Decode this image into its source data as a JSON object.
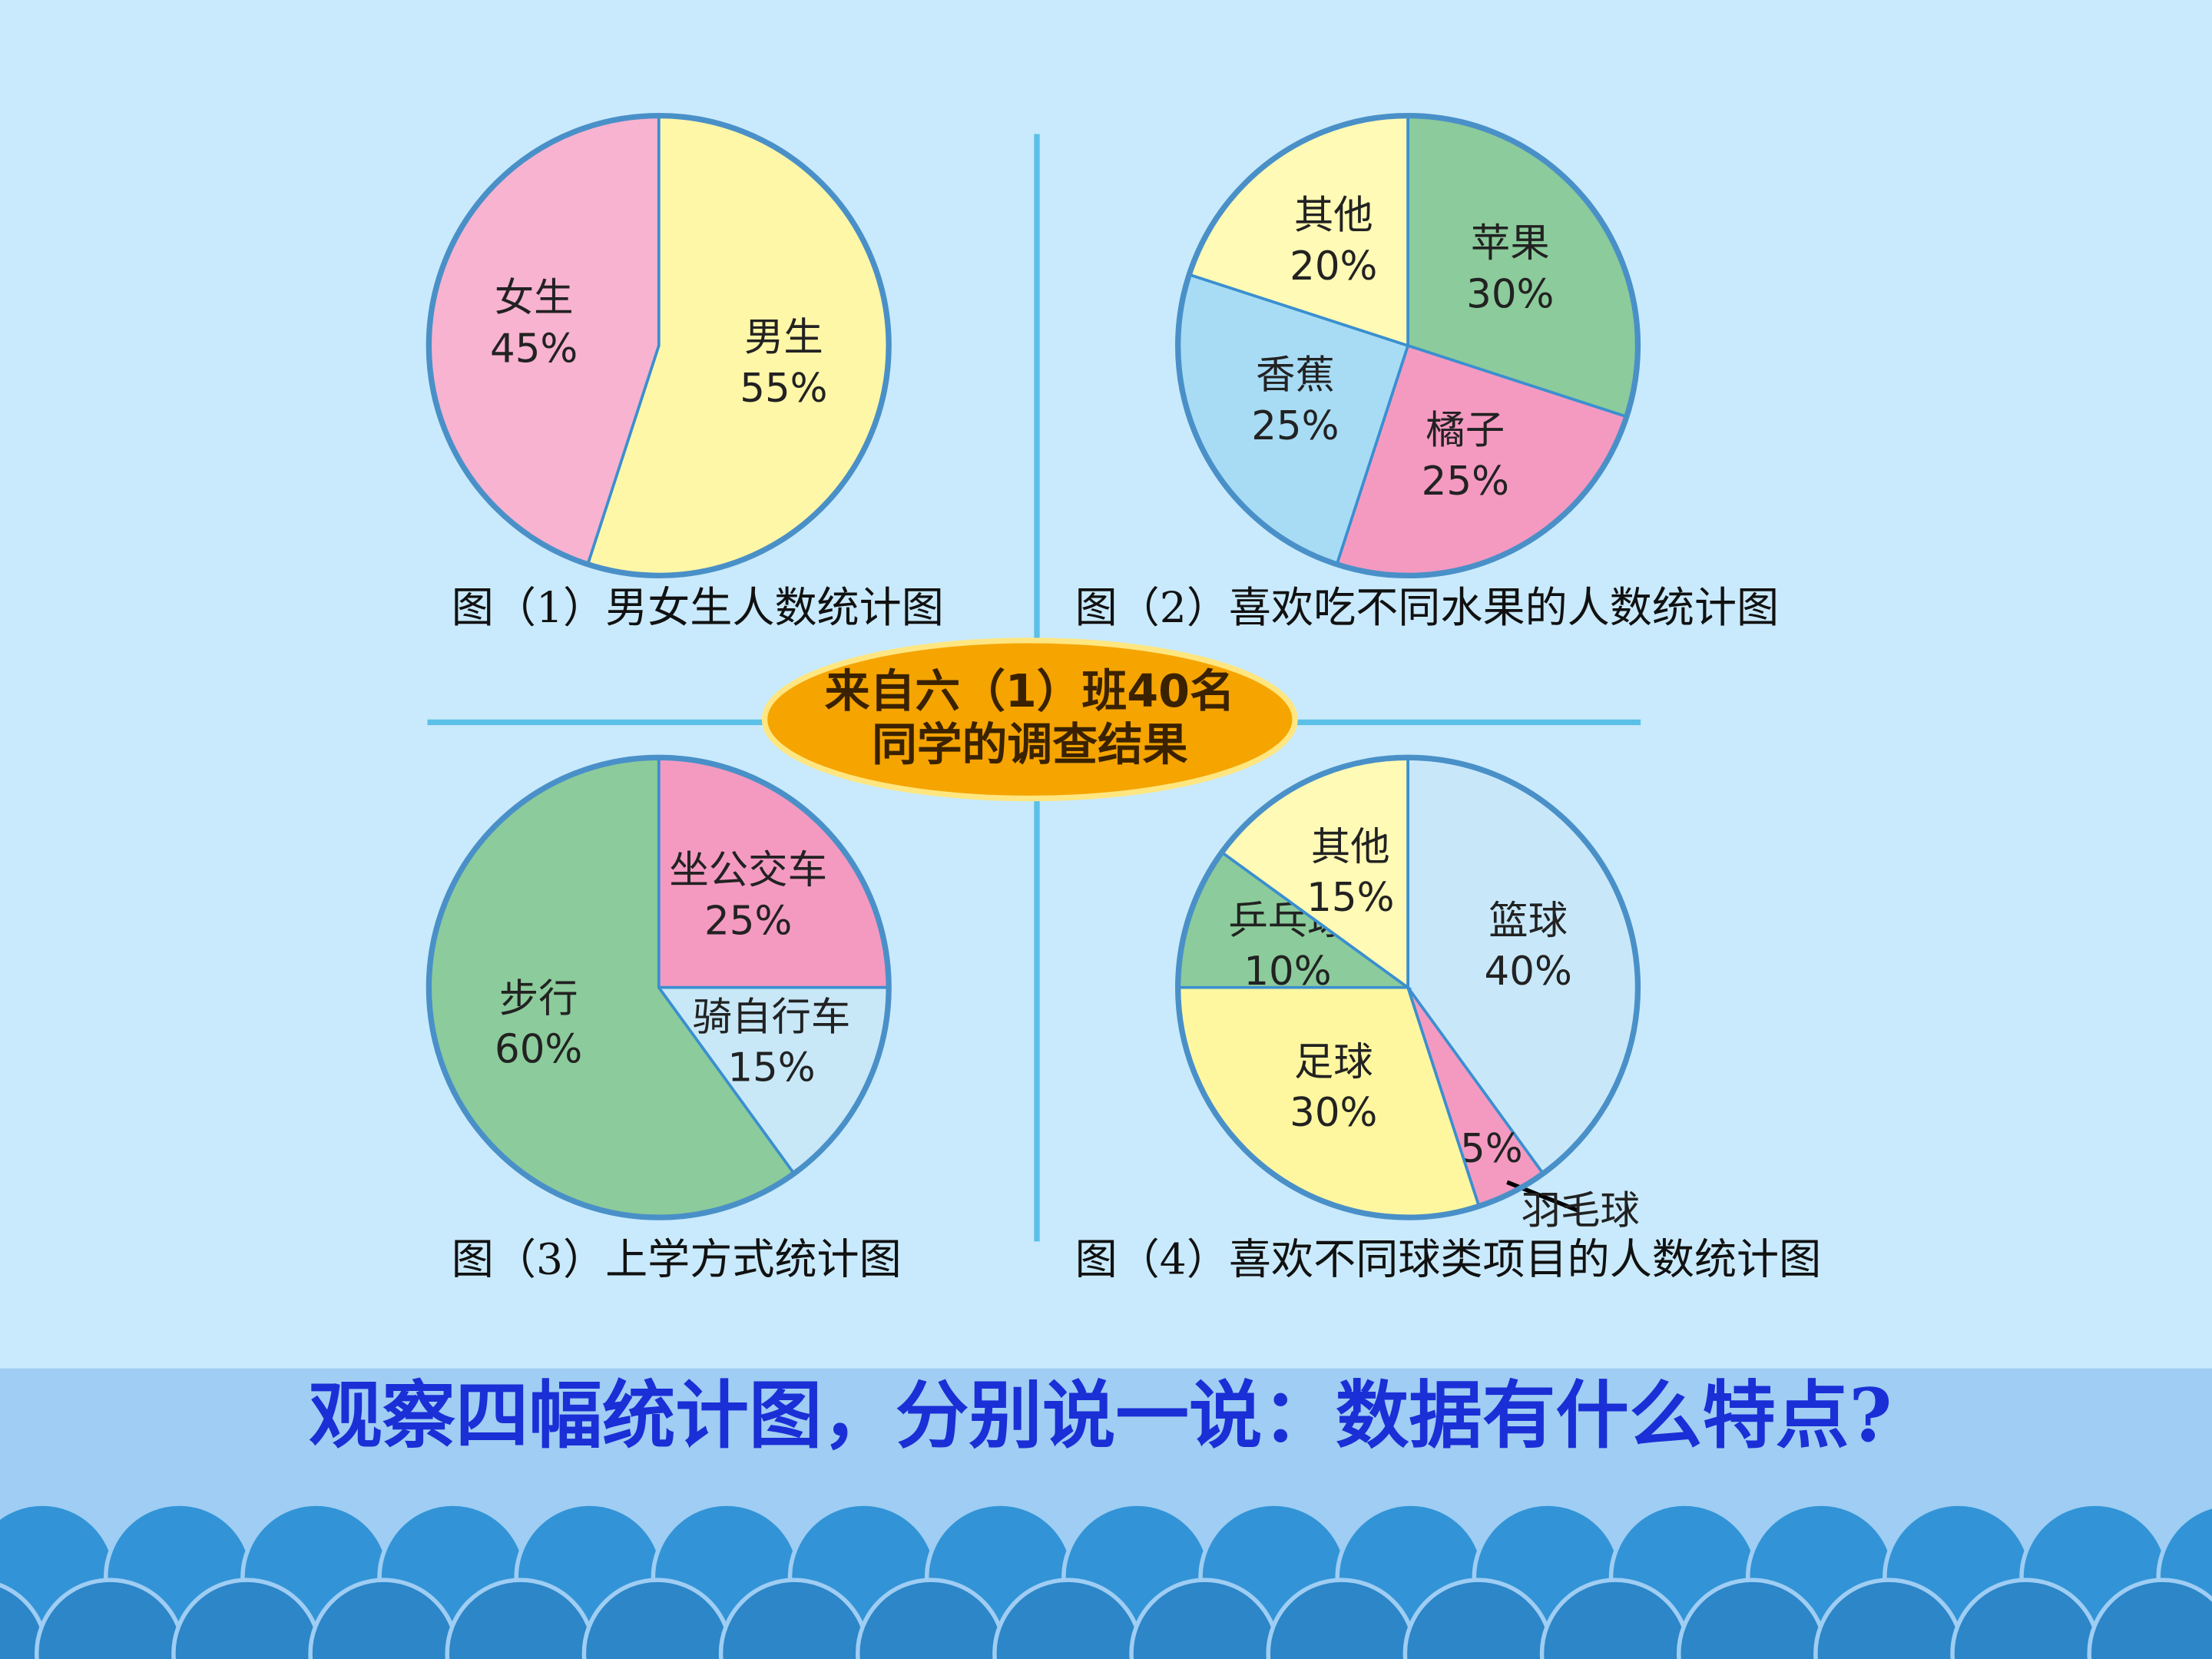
{
  "chart_data": [
    {
      "type": "pie",
      "title": "图（1）男女生人数统计图",
      "categories": [
        "男生",
        "女生"
      ],
      "values": [
        55,
        45
      ],
      "value_labels": [
        "55%",
        "45%"
      ],
      "colors": [
        "#fff7a8",
        "#f7b3cf"
      ]
    },
    {
      "type": "pie",
      "title": "图（2）喜欢吃不同水果的人数统计图",
      "categories": [
        "苹果",
        "橘子",
        "香蕉",
        "其他"
      ],
      "values": [
        30,
        25,
        25,
        20
      ],
      "value_labels": [
        "30%",
        "25%",
        "25%",
        "20%"
      ],
      "colors": [
        "#8ccb9b",
        "#f49ac1",
        "#a8dcf5",
        "#fffab5"
      ]
    },
    {
      "type": "pie",
      "title": "图（3）上学方式统计图",
      "categories": [
        "坐公交车",
        "骑自行车",
        "步行"
      ],
      "values": [
        25,
        15,
        60
      ],
      "value_labels": [
        "25%",
        "15%",
        "60%"
      ],
      "colors": [
        "#f49ac1",
        "#c8e8f8",
        "#8ccb9b"
      ]
    },
    {
      "type": "pie",
      "title": "图（4）喜欢不同球类项目的人数统计图",
      "categories": [
        "篮球",
        "羽毛球",
        "足球",
        "乒乓球",
        "其他"
      ],
      "values": [
        40,
        5,
        30,
        10,
        15
      ],
      "value_labels": [
        "40%",
        "5%",
        "30%",
        "10%",
        "15%"
      ],
      "colors": [
        "#c8e8fa",
        "#f49ac1",
        "#fff7a0",
        "#8ccb9b",
        "#fffab5"
      ]
    }
  ],
  "badge": {
    "lines": [
      "来自六（1）班40名",
      "同学的调查结果"
    ]
  },
  "question": "观察四幅统计图，分别说一说：数据有什么特点?"
}
